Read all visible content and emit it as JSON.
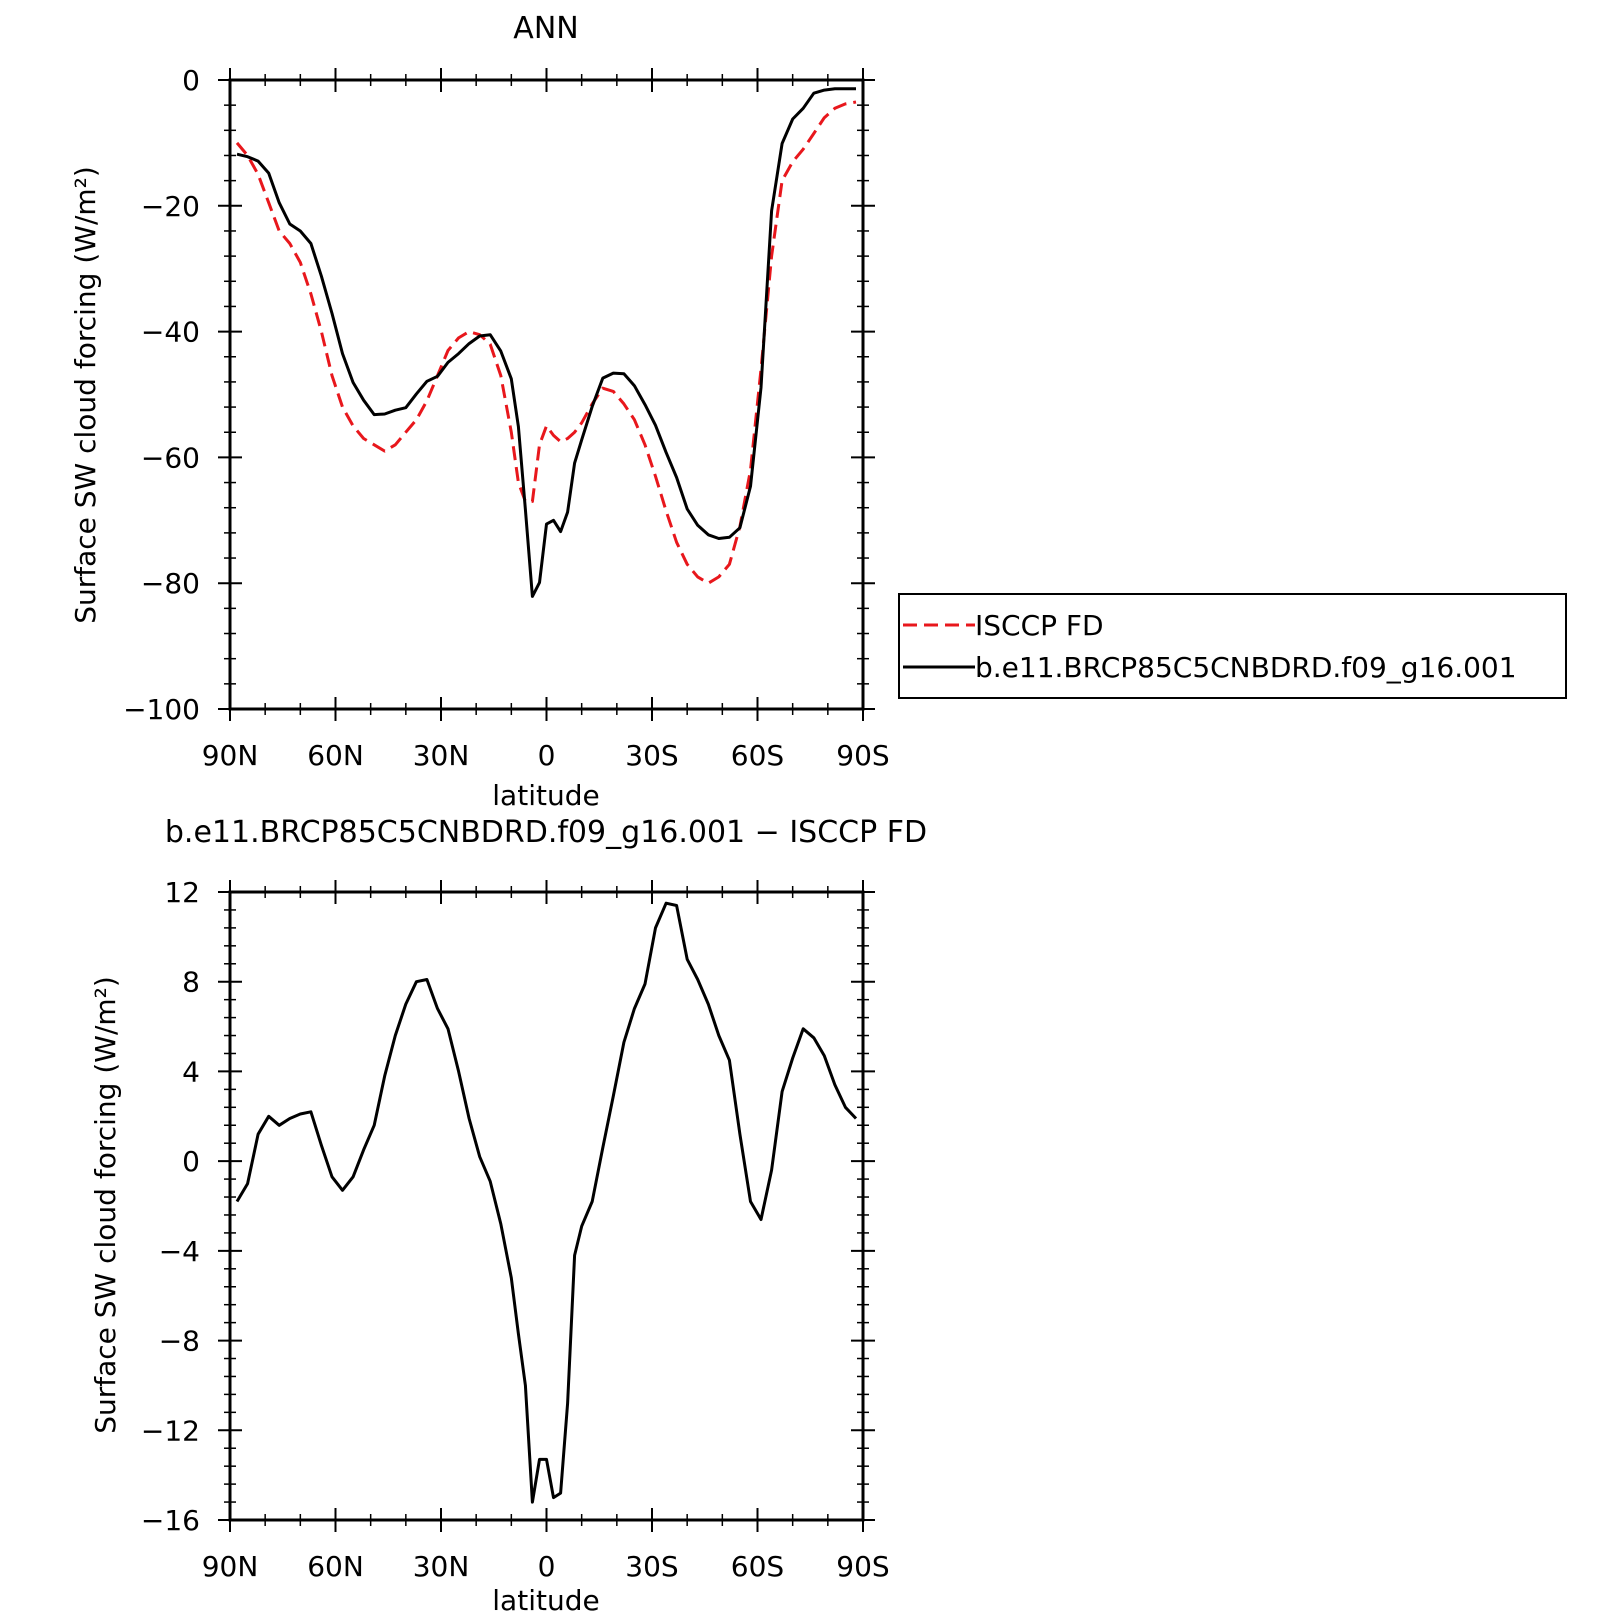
{
  "chart_data": [
    {
      "type": "line",
      "title": "ANN",
      "xlabel": "latitude",
      "ylabel": "Surface SW cloud forcing (W/m²)",
      "xlim": [
        90,
        -90
      ],
      "ylim": [
        -100,
        0
      ],
      "x_ticks": [
        90,
        60,
        30,
        0,
        -30,
        -60,
        -90
      ],
      "x_tick_labels": [
        "90N",
        "60N",
        "30N",
        "0",
        "30S",
        "60S",
        "90S"
      ],
      "y_ticks": [
        0,
        -20,
        -40,
        -60,
        -80,
        -100
      ],
      "y_tick_labels": [
        "0",
        "−20",
        "−40",
        "−60",
        "−80",
        "−100"
      ],
      "grid": false,
      "legend_position": "right",
      "series": [
        {
          "name": "ISCCP FD",
          "color": "#e8171c",
          "dash": "dashed",
          "x": [
            88,
            85,
            82,
            79,
            76,
            73,
            70,
            67,
            64,
            61,
            58,
            55,
            52,
            49,
            46,
            43,
            40,
            37,
            34,
            31,
            28,
            25,
            22,
            19,
            16,
            13,
            10,
            8,
            6,
            4,
            2,
            0,
            -2,
            -4,
            -6,
            -8,
            -10,
            -13,
            -16,
            -19,
            -22,
            -25,
            -28,
            -31,
            -34,
            -37,
            -40,
            -43,
            -46,
            -49,
            -52,
            -55,
            -58,
            -61,
            -64,
            -67,
            -70,
            -73,
            -76,
            -79,
            -82,
            -85,
            -88
          ],
          "y": [
            -10,
            -12,
            -15,
            -19.5,
            -24,
            -26,
            -29,
            -34,
            -40,
            -47,
            -52,
            -55,
            -57,
            -58,
            -59,
            -58,
            -56,
            -54,
            -51,
            -47,
            -43,
            -41,
            -40,
            -40.5,
            -42,
            -47,
            -56,
            -64,
            -67,
            -67,
            -58,
            -55,
            -56.5,
            -57.5,
            -57,
            -56,
            -54.5,
            -51.5,
            -49,
            -49.5,
            -51.5,
            -54,
            -58,
            -63,
            -68.5,
            -73.5,
            -77,
            -79,
            -80,
            -79,
            -77,
            -71,
            -62,
            -46,
            -28,
            -16,
            -13,
            -11,
            -8.5,
            -6,
            -4.5,
            -3.8,
            -3.5
          ]
        },
        {
          "name": "b.e11.BRCP85C5CNBDRD.f09_g16.001",
          "color": "#000000",
          "dash": "solid",
          "x": [
            88,
            85,
            82,
            79,
            76,
            73,
            70,
            67,
            64,
            61,
            58,
            55,
            52,
            49,
            46,
            43,
            40,
            37,
            34,
            31,
            28,
            25,
            22,
            19,
            16,
            13,
            10,
            8,
            6,
            4,
            2,
            0,
            -2,
            -4,
            -6,
            -8,
            -10,
            -13,
            -16,
            -19,
            -22,
            -25,
            -28,
            -31,
            -34,
            -37,
            -40,
            -43,
            -46,
            -49,
            -52,
            -55,
            -58,
            -61,
            -64,
            -67,
            -70,
            -73,
            -76,
            -79,
            -82,
            -85,
            -88
          ],
          "y": [
            -11.8,
            -12.2,
            -12.9,
            -14.8,
            -19.5,
            -22.9,
            -24,
            -26,
            -31.2,
            -37.1,
            -43.5,
            -48.1,
            -50.9,
            -53.2,
            -53.1,
            -52.5,
            -52.1,
            -49.9,
            -47.9,
            -47.1,
            -44.9,
            -43.5,
            -41.9,
            -40.7,
            -40.5,
            -43.1,
            -47.5,
            -55.1,
            -68.3,
            -82.1,
            -79.9,
            -70.6,
            -70.0,
            -71.8,
            -68.7,
            -60.9,
            -57.2,
            -51.9,
            -47.4,
            -46.6,
            -46.7,
            -48.6,
            -51.6,
            -54.9,
            -59.2,
            -63.2,
            -68.2,
            -70.8,
            -72.3,
            -72.9,
            -72.7,
            -71.2,
            -64.6,
            -48.9,
            -20.8,
            -10.1,
            -6.2,
            -4.5,
            -2.1,
            -1.6,
            -1.4,
            -1.4,
            -1.4
          ]
        }
      ]
    },
    {
      "type": "line",
      "title": "b.e11.BRCP85C5CNBDRD.f09_g16.001 − ISCCP FD",
      "xlabel": "latitude",
      "ylabel": "Surface SW cloud forcing (W/m²)",
      "xlim": [
        90,
        -90
      ],
      "ylim": [
        -16,
        12
      ],
      "x_ticks": [
        90,
        60,
        30,
        0,
        -30,
        -60,
        -90
      ],
      "x_tick_labels": [
        "90N",
        "60N",
        "30N",
        "0",
        "30S",
        "60S",
        "90S"
      ],
      "y_ticks": [
        12,
        8,
        4,
        0,
        -4,
        -8,
        -12,
        -16
      ],
      "y_tick_labels": [
        "12",
        "8",
        "4",
        "0",
        "−4",
        "−8",
        "−12",
        "−16"
      ],
      "grid": false,
      "series": [
        {
          "color": "#000000",
          "dash": "solid",
          "x": [
            88,
            85,
            82,
            79,
            76,
            73,
            70,
            67,
            64,
            61,
            58,
            55,
            52,
            49,
            46,
            43,
            40,
            37,
            34,
            31,
            28,
            25,
            22,
            19,
            16,
            13,
            10,
            8,
            6,
            4,
            2,
            0,
            -2,
            -4,
            -6,
            -8,
            -10,
            -13,
            -16,
            -19,
            -22,
            -25,
            -28,
            -31,
            -34,
            -37,
            -40,
            -43,
            -46,
            -49,
            -52,
            -55,
            -58,
            -61,
            -64,
            -67,
            -70,
            -73,
            -76,
            -79,
            -82,
            -85,
            -88
          ],
          "y": [
            -1.8,
            -1.0,
            1.2,
            2.0,
            1.6,
            1.9,
            2.1,
            2.2,
            0.7,
            -0.7,
            -1.3,
            -0.7,
            0.5,
            1.6,
            3.8,
            5.6,
            7.0,
            8.0,
            8.1,
            6.8,
            5.9,
            4.0,
            1.9,
            0.2,
            -0.9,
            -2.8,
            -5.2,
            -7.7,
            -10.0,
            -15.2,
            -13.3,
            -13.3,
            -15.0,
            -14.8,
            -10.8,
            -4.2,
            -2.9,
            -1.8,
            0.6,
            2.9,
            5.3,
            6.8,
            7.9,
            10.4,
            11.5,
            11.4,
            9.0,
            8.1,
            7.0,
            5.6,
            4.5,
            1.2,
            -1.8,
            -2.6,
            -0.4,
            3.1,
            4.6,
            5.9,
            5.5,
            4.7,
            3.4,
            2.4,
            1.9
          ]
        }
      ]
    }
  ]
}
